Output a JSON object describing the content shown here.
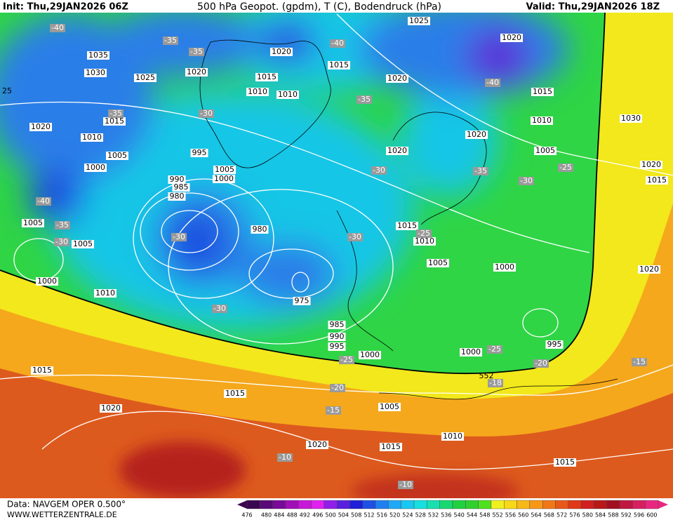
{
  "header": {
    "init": "Init: Thu,29JAN2026 06Z",
    "title": "500 hPa Geopot. (gpdm), T (C), Bodendruck (hPa)",
    "valid": "Valid: Thu,29JAN2026 18Z"
  },
  "footer": {
    "data": "Data: NAVGEM OPER 0.500°",
    "site": "WWW.WETTERZENTRALE.DE"
  },
  "map": {
    "contour_label": "552",
    "edge_label": "25",
    "isobar_labels": [
      "1025",
      "1020",
      "1020",
      "1035",
      "1030",
      "1025",
      "1020",
      "1015",
      "1015",
      "1020",
      "1010",
      "1010",
      "1015",
      "1020",
      "1015",
      "1010",
      "1010",
      "1030",
      "1020",
      "1005",
      "995",
      "1020",
      "1005",
      "1000",
      "1005",
      "1000",
      "1020",
      "990",
      "985",
      "980",
      "1015",
      "1005",
      "1015",
      "980",
      "1010",
      "1005",
      "1005",
      "1000",
      "1020",
      "1000",
      "1010",
      "975",
      "985",
      "990",
      "995",
      "995",
      "1000",
      "1000",
      "1015",
      "1015",
      "1005",
      "1020",
      "1020",
      "1015",
      "1010",
      "1015"
    ],
    "temperature_labels": [
      "-40",
      "-35",
      "-35",
      "-40",
      "-40",
      "-35",
      "-35",
      "-30",
      "-30",
      "-35",
      "-25",
      "-30",
      "-40",
      "-35",
      "-30",
      "-30",
      "-25",
      "-30",
      "-30",
      "-25",
      "-25",
      "-20",
      "-15",
      "-18",
      "-20",
      "-15",
      "-10",
      "-10"
    ]
  },
  "colorbar": {
    "ticks": [
      476,
      480,
      484,
      488,
      492,
      496,
      500,
      504,
      508,
      512,
      516,
      520,
      524,
      528,
      532,
      536,
      540,
      544,
      548,
      552,
      556,
      560,
      564,
      568,
      572,
      576,
      580,
      584,
      588,
      592,
      596,
      600
    ]
  }
}
